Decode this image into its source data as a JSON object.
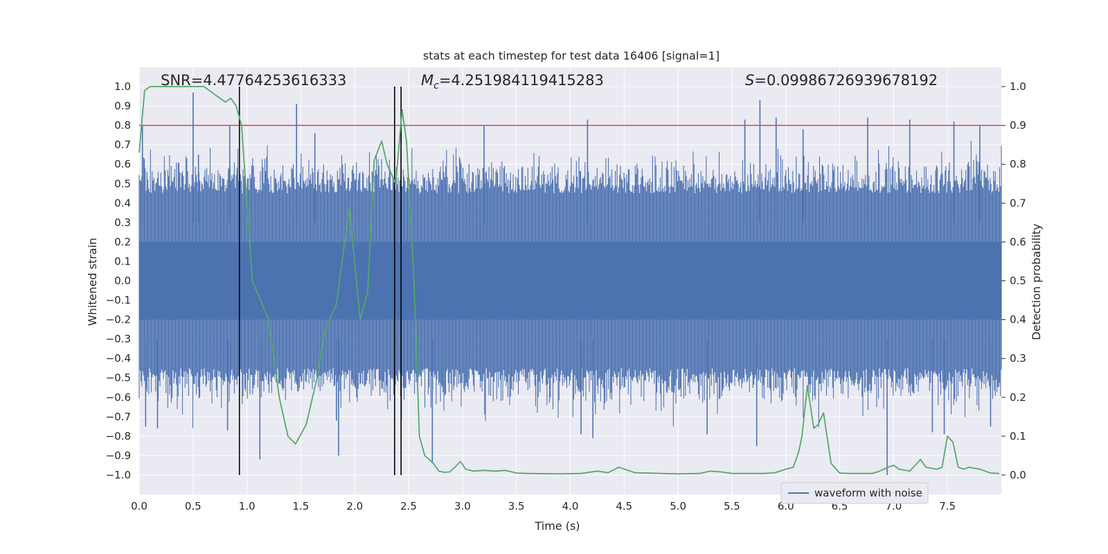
{
  "chart_data": {
    "type": "line",
    "title": "stats at each timestep for test data 16406 [signal=1]",
    "xlabel": "Time (s)",
    "ylabel": "Whitened strain",
    "y2label": "Detection probability",
    "xlim": [
      0.0,
      8.0
    ],
    "ylim": [
      -1.1,
      1.1
    ],
    "y2lim": [
      -0.05,
      1.05
    ],
    "grid": true,
    "legend_position": "lower-right",
    "xticks": [
      "0.0",
      "0.5",
      "1.0",
      "1.5",
      "2.0",
      "2.5",
      "3.0",
      "3.5",
      "4.0",
      "4.5",
      "5.0",
      "5.5",
      "6.0",
      "6.5",
      "7.0",
      "7.5"
    ],
    "yticks": [
      "1.0",
      "0.9",
      "0.8",
      "0.7",
      "0.6",
      "0.5",
      "0.4",
      "0.3",
      "0.2",
      "0.1",
      "0.0",
      "−0.1",
      "−0.2",
      "−0.3",
      "−0.4",
      "−0.5",
      "−0.6",
      "−0.7",
      "−0.8",
      "−0.9",
      "−1.0"
    ],
    "y2ticks": [
      "1.0",
      "0.9",
      "0.8",
      "0.7",
      "0.6",
      "0.5",
      "0.4",
      "0.3",
      "0.2",
      "0.1",
      "0.0"
    ],
    "annotations": {
      "snr": "SNR=4.47764253616333",
      "mc_symbol": "M",
      "mc_subscript": "c",
      "mc_value": "=4.251984119415283",
      "s_symbol": "S",
      "s_value": "=0.09986726939678192"
    },
    "series": [
      {
        "name": "waveform with noise",
        "axis": "left",
        "color": "#4c72b0",
        "kind": "dense-noise",
        "x_range": [
          0.0,
          8.0
        ],
        "typical_upper": 0.45,
        "typical_lower": -0.45,
        "spikes": [
          {
            "x": 0.03,
            "y": 0.8
          },
          {
            "x": 0.5,
            "y": 0.97
          },
          {
            "x": 0.55,
            "y": 0.65
          },
          {
            "x": 0.84,
            "y": 0.8
          },
          {
            "x": 1.46,
            "y": 0.91
          },
          {
            "x": 1.63,
            "y": 0.76
          },
          {
            "x": 2.43,
            "y": 0.79
          },
          {
            "x": 3.2,
            "y": 0.8
          },
          {
            "x": 4.16,
            "y": 0.83
          },
          {
            "x": 5.62,
            "y": 0.83
          },
          {
            "x": 5.76,
            "y": 0.93
          },
          {
            "x": 5.91,
            "y": 0.84
          },
          {
            "x": 6.16,
            "y": 0.78
          },
          {
            "x": 6.76,
            "y": 0.84
          },
          {
            "x": 7.15,
            "y": 0.83
          },
          {
            "x": 7.56,
            "y": 0.82
          },
          {
            "x": 7.8,
            "y": 0.8
          },
          {
            "x": 0.17,
            "y": -0.76
          },
          {
            "x": 0.06,
            "y": -0.75
          },
          {
            "x": 0.82,
            "y": -0.77
          },
          {
            "x": 1.12,
            "y": -0.92
          },
          {
            "x": 1.85,
            "y": -0.9
          },
          {
            "x": 1.83,
            "y": -0.72
          },
          {
            "x": 2.72,
            "y": -0.94
          },
          {
            "x": 4.1,
            "y": -0.79
          },
          {
            "x": 4.21,
            "y": -0.81
          },
          {
            "x": 5.27,
            "y": -0.79
          },
          {
            "x": 5.73,
            "y": -0.85
          },
          {
            "x": 6.94,
            "y": -1.0
          },
          {
            "x": 7.36,
            "y": -0.78
          },
          {
            "x": 7.47,
            "y": -0.79
          },
          {
            "x": 7.9,
            "y": -0.75
          }
        ]
      },
      {
        "name": "Detection probability",
        "axis": "right",
        "color": "#55a868",
        "x": [
          0.0,
          0.05,
          0.1,
          0.2,
          0.3,
          0.4,
          0.5,
          0.6,
          0.65,
          0.7,
          0.75,
          0.8,
          0.85,
          0.9,
          0.95,
          1.05,
          1.2,
          1.3,
          1.38,
          1.45,
          1.55,
          1.65,
          1.72,
          1.78,
          1.83,
          1.95,
          2.05,
          2.12,
          2.18,
          2.25,
          2.3,
          2.38,
          2.44,
          2.48,
          2.55,
          2.6,
          2.65,
          2.73,
          2.78,
          2.83,
          2.88,
          2.93,
          2.98,
          3.03,
          3.1,
          3.2,
          3.3,
          3.4,
          3.5,
          3.6,
          3.9,
          4.1,
          4.25,
          4.35,
          4.45,
          4.6,
          5.0,
          5.2,
          5.3,
          5.4,
          5.5,
          5.8,
          5.9,
          6.0,
          6.07,
          6.12,
          6.15,
          6.2,
          6.26,
          6.3,
          6.35,
          6.42,
          6.5,
          6.6,
          6.8,
          6.85,
          6.95,
          7.0,
          7.05,
          7.15,
          7.25,
          7.3,
          7.4,
          7.45,
          7.5,
          7.55,
          7.6,
          7.65,
          7.7,
          7.8,
          7.85,
          7.9,
          7.98
        ],
        "y": [
          0.83,
          0.99,
          1.0,
          1.0,
          1.0,
          1.0,
          1.0,
          1.0,
          0.99,
          0.98,
          0.97,
          0.96,
          0.97,
          0.95,
          0.9,
          0.5,
          0.4,
          0.2,
          0.1,
          0.08,
          0.13,
          0.25,
          0.37,
          0.41,
          0.44,
          0.69,
          0.4,
          0.47,
          0.81,
          0.86,
          0.8,
          0.75,
          0.94,
          0.86,
          0.5,
          0.1,
          0.05,
          0.03,
          0.01,
          0.007,
          0.008,
          0.02,
          0.035,
          0.015,
          0.01,
          0.012,
          0.01,
          0.012,
          0.005,
          0.004,
          0.003,
          0.004,
          0.01,
          0.006,
          0.02,
          0.006,
          0.003,
          0.004,
          0.01,
          0.008,
          0.004,
          0.004,
          0.006,
          0.015,
          0.02,
          0.06,
          0.1,
          0.23,
          0.12,
          0.13,
          0.16,
          0.03,
          0.005,
          0.004,
          0.004,
          0.008,
          0.02,
          0.025,
          0.015,
          0.01,
          0.04,
          0.02,
          0.015,
          0.02,
          0.1,
          0.085,
          0.02,
          0.015,
          0.02,
          0.015,
          0.01,
          0.005,
          0.004
        ]
      }
    ],
    "hlines": [
      {
        "axis": "right",
        "y": 0.9,
        "color": "#c44e52"
      }
    ],
    "vlines": [
      {
        "x": 0.93,
        "color": "#000000"
      },
      {
        "x": 2.37,
        "color": "#000000"
      },
      {
        "x": 2.43,
        "color": "#000000"
      }
    ],
    "legend": [
      {
        "label": "waveform with noise",
        "color": "#4c72b0"
      }
    ]
  }
}
